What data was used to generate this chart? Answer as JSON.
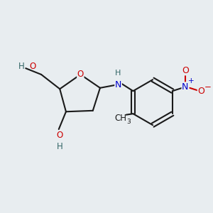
{
  "bg_color": "#e8edf0",
  "bond_color": "#1a1a1a",
  "o_color": "#cc0000",
  "n_color": "#0000cc",
  "h_color": "#336666",
  "figsize": [
    3.0,
    3.0
  ],
  "dpi": 100,
  "lw": 1.5,
  "fs": 8.5,
  "xlim": [
    0,
    10
  ],
  "ylim": [
    0,
    10
  ]
}
